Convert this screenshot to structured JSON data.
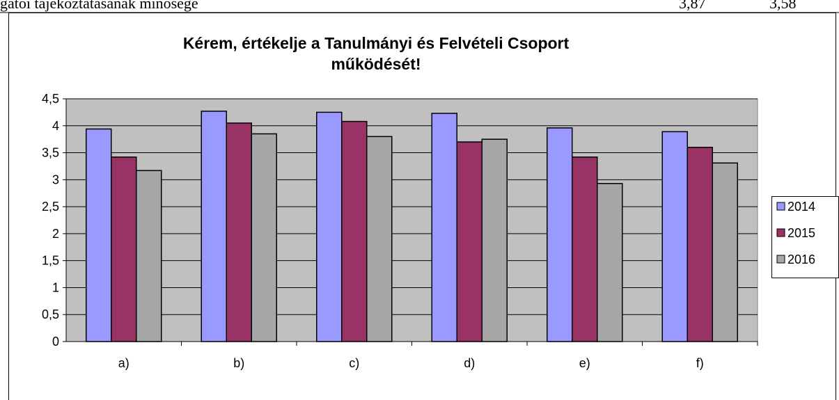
{
  "page_header": {
    "text": "gatói tájékoztatásának minősége",
    "numbers": [
      "3,87",
      "3,58"
    ]
  },
  "chart_data": {
    "type": "bar",
    "title": [
      "Kérem, értékelje a Tanulmányi és Felvételi Csoport",
      "működését!"
    ],
    "categories": [
      "a)",
      "b)",
      "c)",
      "d)",
      "e)",
      "f)"
    ],
    "series": [
      {
        "name": "2014",
        "color": "#9999ff",
        "values": [
          3.94,
          4.27,
          4.25,
          4.23,
          3.96,
          3.89
        ]
      },
      {
        "name": "2015",
        "color": "#993366",
        "values": [
          3.42,
          4.05,
          4.08,
          3.7,
          3.42,
          3.6
        ]
      },
      {
        "name": "2016",
        "color": "#a6a6a6",
        "values": [
          3.17,
          3.85,
          3.8,
          3.75,
          2.93,
          3.31
        ]
      }
    ],
    "ylim": [
      0,
      4.5
    ],
    "yticks": [
      0,
      {
        "value": 0.5,
        "label": "0,5"
      },
      1,
      {
        "value": 1.5,
        "label": "1,5"
      },
      2,
      {
        "value": 2.5,
        "label": "2,5"
      },
      3,
      {
        "value": 3.5,
        "label": "3,5"
      },
      4,
      {
        "value": 4.5,
        "label": "4,5"
      }
    ],
    "grid": true,
    "plot_background": "#c0c0c0",
    "legend": "right"
  }
}
